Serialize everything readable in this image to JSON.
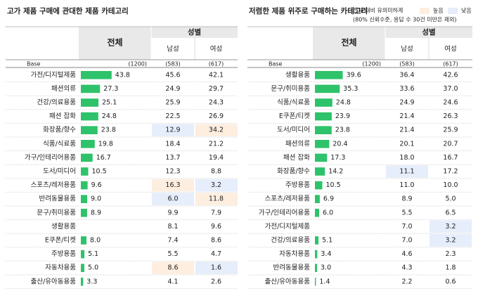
{
  "chart_data": [
    {
      "type": "bar",
      "title": "고가 제품 구매에 관대한 제품 카테고리",
      "header_group": "성별",
      "base_label": "Base",
      "base": [
        {
          "value": 1200,
          "label": "(1200)"
        },
        {
          "value": 583,
          "label": "(583)"
        },
        {
          "value": 617,
          "label": "(617)"
        }
      ],
      "categories": [
        "가전/디지털제품",
        "패션의류",
        "건강/의료용품",
        "패션 잡화",
        "화장품/향수",
        "식품/식료품",
        "가구/인테리어용품",
        "도서/미디어",
        "스포츠/레저용품",
        "반려동물용품",
        "문구/취미용품",
        "생활용품",
        "E쿠폰/티켓",
        "주방용품",
        "자동차용품",
        "출산/유아동용품"
      ],
      "series": [
        {
          "name": "전체",
          "color": "#2ec26a",
          "values": [
            43.8,
            27.3,
            25.1,
            24.8,
            23.8,
            19.8,
            16.7,
            10.5,
            9.6,
            9,
            8.9,
            null,
            8,
            5.1,
            5,
            3.3
          ],
          "value_labels": [
            "43.8",
            "27.3",
            "25.1",
            "24.8",
            "23.8",
            "19.8",
            "16.7",
            "10.5",
            "9.6",
            "9.0",
            "8.9",
            null,
            "8.0",
            "5.1",
            "5.0",
            "3.3"
          ]
        },
        {
          "name": "남성",
          "values": [
            45.6,
            24.9,
            25.9,
            22.5,
            12.9,
            18.4,
            13.7,
            12.3,
            16.3,
            6,
            9.9,
            8.1,
            7.4,
            5.5,
            8.6,
            4.1
          ],
          "value_labels": [
            "45.6",
            "24.9",
            "25.9",
            "22.5",
            "12.9",
            "18.4",
            "13.7",
            "12.3",
            "16.3",
            "6.0",
            "9.9",
            "8.1",
            "7.4",
            "5.5",
            "8.6",
            "4.1"
          ],
          "highlights": [
            null,
            null,
            null,
            null,
            "low",
            null,
            null,
            null,
            "high",
            "low",
            null,
            null,
            null,
            null,
            "high",
            null
          ]
        },
        {
          "name": "여성",
          "values": [
            42.1,
            29.7,
            24.3,
            26.9,
            34.2,
            21.2,
            19.4,
            8.8,
            3.2,
            11.8,
            7.9,
            9.6,
            8.6,
            4.7,
            1.6,
            2.6
          ],
          "value_labels": [
            "42.1",
            "29.7",
            "24.3",
            "26.9",
            "34.2",
            "21.2",
            "19.4",
            "8.8",
            "3.2",
            "11.8",
            "7.9",
            "9.6",
            "8.6",
            "4.7",
            "1.6",
            "2.6"
          ],
          "highlights": [
            null,
            null,
            null,
            null,
            "high",
            null,
            null,
            null,
            "low",
            "high",
            null,
            null,
            null,
            null,
            "low",
            null
          ]
        }
      ]
    },
    {
      "type": "bar",
      "title": "저렴한 제품 위주로 구매하는 카테고리",
      "header_group": "성별",
      "base_label": "Base",
      "base": [
        {
          "value": 1200,
          "label": "(1200)"
        },
        {
          "value": 583,
          "label": "(583)"
        },
        {
          "value": 617,
          "label": "(617)"
        }
      ],
      "legend": {
        "title": "전체 대비 유의미하게",
        "high": "높음",
        "low": "낮음",
        "note": "(80% 신뢰수준, 응답 수 30건 미만은 제외)"
      },
      "categories": [
        "생활용품",
        "문구/취미용품",
        "식품/식료품",
        "E쿠폰/티켓",
        "도서/미디어",
        "패션의류",
        "패션 잡화",
        "화장품/향수",
        "주방용품",
        "스포츠/레저용품",
        "가구/인테리어용품",
        "가전/디지털제품",
        "건강/의료용품",
        "자동차용품",
        "반려동물용품",
        "출산/유아동용품"
      ],
      "series": [
        {
          "name": "전체",
          "color": "#2ec26a",
          "values": [
            39.6,
            35.3,
            24.8,
            23.9,
            23.8,
            20.4,
            17.3,
            14.2,
            10.5,
            6.9,
            6,
            null,
            5.1,
            3.4,
            3,
            1.4
          ],
          "value_labels": [
            "39.6",
            "35.3",
            "24.8",
            "23.9",
            "23.8",
            "20.4",
            "17.3",
            "14.2",
            "10.5",
            "6.9",
            "6.0",
            null,
            "5.1",
            "3.4",
            "3.0",
            "1.4"
          ]
        },
        {
          "name": "남성",
          "values": [
            36.4,
            33.6,
            24.9,
            21.4,
            21.4,
            20.1,
            18,
            11.1,
            11,
            8.9,
            5.5,
            7,
            7,
            4.6,
            4.3,
            2.2
          ],
          "value_labels": [
            "36.4",
            "33.6",
            "24.9",
            "21.4",
            "21.4",
            "20.1",
            "18.0",
            "11.1",
            "11.0",
            "8.9",
            "5.5",
            "7.0",
            "7.0",
            "4.6",
            "4.3",
            "2.2"
          ],
          "highlights": [
            null,
            null,
            null,
            null,
            null,
            null,
            null,
            "low",
            null,
            null,
            null,
            null,
            null,
            null,
            null,
            null
          ]
        },
        {
          "name": "여성",
          "values": [
            42.6,
            37,
            24.6,
            26.3,
            25.9,
            20.7,
            16.7,
            17.2,
            10,
            5,
            6.5,
            3.2,
            3.2,
            2.3,
            1.8,
            0.6
          ],
          "value_labels": [
            "42.6",
            "37.0",
            "24.6",
            "26.3",
            "25.9",
            "20.7",
            "16.7",
            "17.2",
            "10.0",
            "5.0",
            "6.5",
            "3.2",
            "3.2",
            "2.3",
            "1.8",
            "0.6"
          ],
          "highlights": [
            null,
            null,
            null,
            null,
            null,
            null,
            null,
            null,
            null,
            null,
            null,
            "low",
            "low",
            null,
            null,
            null
          ]
        }
      ]
    }
  ],
  "highlight_colors": {
    "high": "#fdeee0",
    "low": "#e6edfb"
  }
}
